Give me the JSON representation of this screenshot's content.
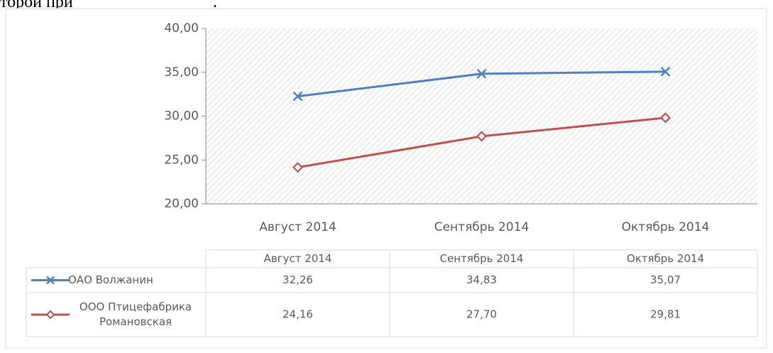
{
  "header_fragment": [
    "торой при",
    "."
  ],
  "chart_data": {
    "type": "line",
    "categories": [
      "Август 2014",
      "Сентябрь 2014",
      "Октябрь 2014"
    ],
    "series": [
      {
        "name": "ОАО Волжанин",
        "color": "#4f81bd",
        "marker": "x",
        "values": [
          32.26,
          34.83,
          35.07
        ],
        "value_labels": [
          "32,26",
          "34,83",
          "35,07"
        ]
      },
      {
        "name": "ООО Птицефабрика Романовская",
        "color": "#c0504d",
        "marker": "diamond",
        "values": [
          24.16,
          27.7,
          29.81
        ],
        "value_labels": [
          "24,16",
          "27,70",
          "29,81"
        ]
      }
    ],
    "ylim": [
      20,
      40
    ],
    "yticks": [
      {
        "value": 20,
        "label": "20,00"
      },
      {
        "value": 25,
        "label": "25,00"
      },
      {
        "value": 30,
        "label": "30,00"
      },
      {
        "value": 35,
        "label": "35,00"
      },
      {
        "value": 40,
        "label": "40,00"
      }
    ],
    "data_table": true
  }
}
